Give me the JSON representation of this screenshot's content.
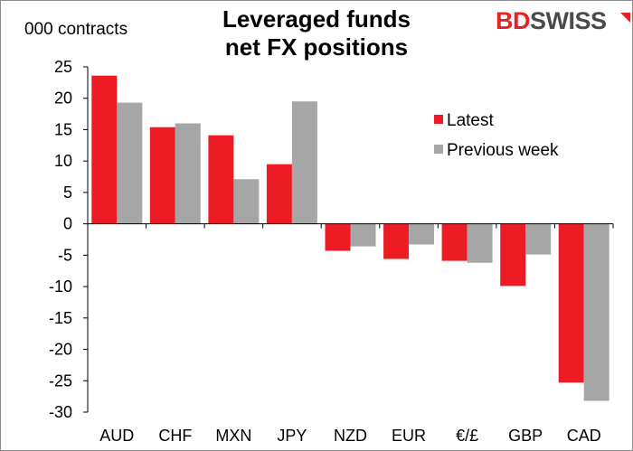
{
  "header": {
    "units": "000 contracts",
    "title_line1": "Leveraged funds",
    "title_line2": "net FX positions",
    "logo_bd": "BD",
    "logo_swiss": "SWISS"
  },
  "chart_data": {
    "type": "bar",
    "title": "Leveraged funds net FX positions",
    "ylabel": "000 contracts",
    "xlabel": "",
    "categories": [
      "AUD",
      "CHF",
      "MXN",
      "JPY",
      "NZD",
      "EUR",
      "€/£",
      "GBP",
      "CAD"
    ],
    "series": [
      {
        "name": "Latest",
        "color": "#ed1c24",
        "values": [
          23.6,
          15.4,
          14.1,
          9.5,
          -4.3,
          -5.6,
          -5.9,
          -9.9,
          -25.3
        ]
      },
      {
        "name": "Previous week",
        "color": "#a6a6a6",
        "values": [
          19.3,
          16.0,
          7.1,
          19.5,
          -3.6,
          -3.3,
          -6.2,
          -4.9,
          -28.2
        ]
      }
    ],
    "yticks": [
      25,
      20,
      15,
      10,
      5,
      0,
      -5,
      -10,
      -15,
      -20,
      -25,
      -30
    ],
    "ylim": [
      -30,
      25
    ],
    "grid": false,
    "legend_position": "right"
  }
}
